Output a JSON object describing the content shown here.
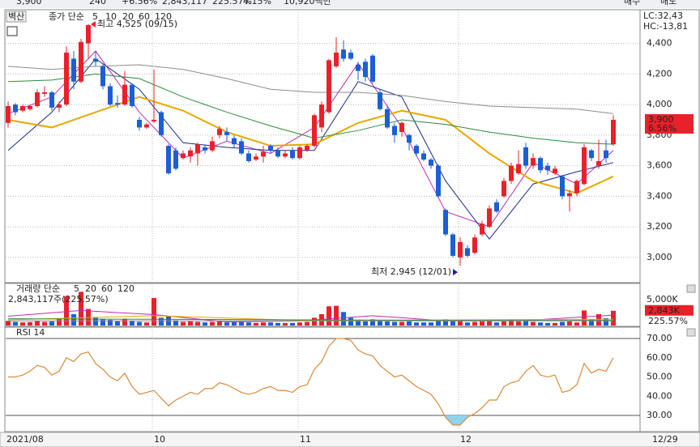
{
  "header": [
    "3,900",
    "240",
    "+6.56%",
    "2,843,117",
    "225.57%",
    "4.15%",
    "10,920백만",
    "매수",
    "매도"
  ],
  "chart_data": [
    {
      "type": "candlestick",
      "name": "벽산",
      "legend_label": "종가 단순",
      "ylim": [
        2840,
        4610
      ],
      "yticks": [
        {
          "value": 3000,
          "label": "3,000"
        },
        {
          "value": 3200,
          "label": "3,200"
        },
        {
          "value": 3400,
          "label": "3,400"
        },
        {
          "value": 3600,
          "label": "3,600"
        },
        {
          "value": 3800,
          "label": "3,800"
        },
        {
          "value": 4000,
          "label": "4,000"
        },
        {
          "value": 4200,
          "label": "4,200"
        },
        {
          "value": 4400,
          "label": "4,400"
        }
      ],
      "grid": true,
      "up_color": "#e8212a",
      "down_color": "#1b5fd6",
      "ohlc": [
        [
          3880,
          4020,
          3850,
          3990
        ],
        [
          4000,
          4010,
          3930,
          3950
        ],
        [
          3960,
          4000,
          3950,
          3990
        ],
        [
          3970,
          4000,
          3960,
          3990
        ],
        [
          3990,
          4100,
          3980,
          4080
        ],
        [
          4070,
          4120,
          4050,
          4080
        ],
        [
          4080,
          4090,
          3960,
          3980
        ],
        [
          3980,
          4020,
          3950,
          4000
        ],
        [
          4000,
          4380,
          3990,
          4340
        ],
        [
          4300,
          4350,
          4100,
          4150
        ],
        [
          4150,
          4430,
          4140,
          4410
        ],
        [
          4400,
          4525,
          4300,
          4520
        ],
        [
          4300,
          4350,
          4250,
          4280
        ],
        [
          4250,
          4270,
          4100,
          4120
        ],
        [
          4120,
          4140,
          3990,
          4000
        ],
        [
          4010,
          4060,
          3980,
          4000
        ],
        [
          4000,
          4220,
          3990,
          4130
        ],
        [
          4130,
          4140,
          3980,
          3990
        ],
        [
          3900,
          3920,
          3830,
          3850
        ],
        [
          3850,
          3880,
          3840,
          3870
        ],
        [
          3890,
          4230,
          3880,
          3900
        ],
        [
          3950,
          3960,
          3790,
          3800
        ],
        [
          3730,
          3740,
          3540,
          3550
        ],
        [
          3700,
          3720,
          3570,
          3580
        ],
        [
          3650,
          3700,
          3640,
          3680
        ],
        [
          3660,
          3720,
          3620,
          3700
        ],
        [
          3680,
          3750,
          3600,
          3740
        ],
        [
          3720,
          3740,
          3680,
          3700
        ],
        [
          3700,
          3790,
          3690,
          3760
        ],
        [
          3800,
          3860,
          3780,
          3840
        ],
        [
          3820,
          3850,
          3760,
          3800
        ],
        [
          3780,
          3800,
          3720,
          3740
        ],
        [
          3760,
          3780,
          3670,
          3680
        ],
        [
          3680,
          3700,
          3620,
          3630
        ],
        [
          3640,
          3680,
          3630,
          3660
        ],
        [
          3660,
          3730,
          3620,
          3690
        ],
        [
          3730,
          3740,
          3680,
          3700
        ],
        [
          3700,
          3720,
          3650,
          3660
        ],
        [
          3660,
          3700,
          3650,
          3680
        ],
        [
          3700,
          3720,
          3640,
          3650
        ],
        [
          3650,
          3730,
          3640,
          3720
        ],
        [
          3700,
          3740,
          3690,
          3730
        ],
        [
          3730,
          3940,
          3720,
          3930
        ],
        [
          3850,
          4020,
          3820,
          4000
        ],
        [
          3950,
          4300,
          3940,
          4290
        ],
        [
          4250,
          4440,
          4240,
          4340
        ],
        [
          4360,
          4420,
          4280,
          4300
        ],
        [
          4340,
          4360,
          4290,
          4300
        ],
        [
          4260,
          4280,
          4160,
          4220
        ],
        [
          4280,
          4300,
          4150,
          4180
        ],
        [
          4320,
          4330,
          4140,
          4150
        ],
        [
          4080,
          4100,
          3960,
          3970
        ],
        [
          3970,
          3990,
          3840,
          3850
        ],
        [
          3860,
          3880,
          3750,
          3800
        ],
        [
          3820,
          3890,
          3790,
          3880
        ],
        [
          3800,
          3810,
          3700,
          3750
        ],
        [
          3730,
          3740,
          3660,
          3680
        ],
        [
          3680,
          3700,
          3630,
          3640
        ],
        [
          3640,
          3650,
          3580,
          3600
        ],
        [
          3600,
          3610,
          3390,
          3400
        ],
        [
          3310,
          3320,
          3140,
          3150
        ],
        [
          3150,
          3160,
          3000,
          3010
        ],
        [
          3000,
          3130,
          2945,
          3100
        ],
        [
          3060,
          3080,
          3000,
          3010
        ],
        [
          3030,
          3150,
          3020,
          3130
        ],
        [
          3150,
          3240,
          3140,
          3220
        ],
        [
          3200,
          3340,
          3190,
          3320
        ],
        [
          3360,
          3380,
          3290,
          3300
        ],
        [
          3400,
          3520,
          3390,
          3500
        ],
        [
          3500,
          3620,
          3480,
          3600
        ],
        [
          3550,
          3700,
          3540,
          3610
        ],
        [
          3720,
          3750,
          3580,
          3600
        ],
        [
          3600,
          3680,
          3580,
          3650
        ],
        [
          3650,
          3660,
          3550,
          3570
        ],
        [
          3600,
          3620,
          3540,
          3570
        ],
        [
          3550,
          3600,
          3540,
          3580
        ],
        [
          3530,
          3540,
          3380,
          3400
        ],
        [
          3400,
          3440,
          3300,
          3420
        ],
        [
          3420,
          3510,
          3400,
          3500
        ],
        [
          3480,
          3740,
          3470,
          3720
        ],
        [
          3700,
          3710,
          3630,
          3650
        ],
        [
          3600,
          3770,
          3580,
          3630
        ],
        [
          3700,
          3770,
          3620,
          3650
        ],
        [
          3740,
          3930,
          3730,
          3900
        ]
      ],
      "series": [
        {
          "name": "5",
          "color": "#c02cb0",
          "x": [
            0,
            6,
            12,
            18,
            24,
            30,
            36,
            42,
            48,
            54,
            60,
            66,
            72,
            78,
            83
          ],
          "values": [
            3940,
            4050,
            4350,
            3950,
            3650,
            3760,
            3680,
            3850,
            4270,
            3850,
            3300,
            3200,
            3620,
            3480,
            3700
          ]
        },
        {
          "name": "10",
          "color": "#1a2a8a",
          "x": [
            0,
            6,
            12,
            18,
            24,
            30,
            36,
            42,
            48,
            54,
            60,
            66,
            72,
            78,
            83
          ],
          "values": [
            3700,
            3950,
            4300,
            4100,
            3750,
            3720,
            3700,
            3700,
            4150,
            4050,
            3500,
            3120,
            3480,
            3560,
            3620
          ]
        },
        {
          "name": "20",
          "color": "#e8a800",
          "x": [
            0,
            6,
            12,
            18,
            24,
            30,
            36,
            42,
            48,
            54,
            60,
            66,
            72,
            78,
            83
          ],
          "values": [
            3900,
            3850,
            3950,
            4050,
            3960,
            3820,
            3730,
            3740,
            3880,
            3960,
            3900,
            3680,
            3500,
            3420,
            3530
          ]
        },
        {
          "name": "60",
          "color": "#2e8b3a",
          "x": [
            0,
            6,
            12,
            18,
            24,
            30,
            36,
            42,
            48,
            54,
            60,
            66,
            72,
            78,
            83
          ],
          "values": [
            4150,
            4160,
            4200,
            4170,
            4050,
            3950,
            3860,
            3780,
            3830,
            3900,
            3870,
            3820,
            3780,
            3750,
            3740
          ]
        },
        {
          "name": "120",
          "color": "#8c8c8c",
          "x": [
            0,
            6,
            12,
            18,
            24,
            30,
            36,
            42,
            48,
            54,
            60,
            66,
            72,
            78,
            83
          ],
          "values": [
            4250,
            4230,
            4250,
            4260,
            4230,
            4170,
            4100,
            4080,
            4080,
            4060,
            4020,
            3990,
            3980,
            3970,
            3940
          ]
        }
      ],
      "annotations": [
        {
          "text": "최고 4,525 (09/15)",
          "x": 11,
          "value": 4525,
          "color": "#e8212a",
          "side": "right"
        },
        {
          "text": "최저 2,945 (12/01)",
          "x": 62,
          "value": 2945,
          "color": "#1b1bb0",
          "side": "left"
        }
      ],
      "corner_labels": [
        {
          "text": "LC:32,43",
          "color": "#e8212a"
        },
        {
          "text": "HC:-13,81",
          "color": "#1b5fd6"
        }
      ],
      "last": {
        "value": 3900,
        "label": "3,900",
        "change": "6.56%",
        "color": "#e8212a"
      }
    },
    {
      "type": "bar",
      "legend_label": "거래량 단순",
      "summary": "2,843,117주(225.57%)",
      "ylim": [
        0,
        7800
      ],
      "yticks": [
        {
          "value": 5000,
          "label": "5,000K"
        }
      ],
      "values": [
        900,
        700,
        600,
        650,
        900,
        700,
        800,
        1200,
        5600,
        2200,
        6500,
        3200,
        1500,
        1200,
        1100,
        800,
        1300,
        900,
        700,
        600,
        5300,
        1500,
        1800,
        1000,
        700,
        800,
        700,
        600,
        700,
        800,
        600,
        700,
        700,
        600,
        500,
        600,
        600,
        500,
        500,
        500,
        600,
        700,
        1500,
        2200,
        3700,
        3800,
        2600,
        1500,
        900,
        800,
        1200,
        900,
        800,
        700,
        700,
        800,
        600,
        600,
        600,
        900,
        1200,
        900,
        1100,
        600,
        700,
        800,
        900,
        600,
        800,
        1200,
        800,
        900,
        700,
        600,
        500,
        500,
        700,
        800,
        600,
        2900,
        1200,
        2200,
        1400,
        2843
      ],
      "series": [
        {
          "name": "5",
          "color": "#c02cb0",
          "x": [
            0,
            10,
            20,
            30,
            40,
            50,
            60,
            70,
            83
          ],
          "values": [
            1800,
            2900,
            2100,
            700,
            900,
            1900,
            900,
            900,
            2000
          ]
        },
        {
          "name": "20",
          "color": "#e8a800",
          "x": [
            0,
            20,
            40,
            60,
            83
          ],
          "values": [
            1100,
            1900,
            1000,
            1100,
            1200
          ]
        },
        {
          "name": "60",
          "color": "#2e8b3a",
          "x": [
            0,
            20,
            40,
            60,
            83
          ],
          "values": [
            1300,
            1200,
            1100,
            1000,
            1000
          ]
        },
        {
          "name": "120",
          "color": "#8c8c8c",
          "x": [
            0,
            40,
            83
          ],
          "values": [
            900,
            900,
            900
          ]
        }
      ],
      "last": {
        "value": 2843,
        "label": "2,843K",
        "change": "225.57%",
        "color": "#e8212a"
      }
    },
    {
      "type": "line",
      "legend_label": "RSI 14",
      "color": "#d98a3a",
      "fill_color": "#8fd3f0",
      "ylim": [
        22,
        75.5
      ],
      "yticks": [
        {
          "value": 30,
          "label": "30.00"
        },
        {
          "value": 40,
          "label": "40.00"
        },
        {
          "value": 50,
          "label": "50.00"
        },
        {
          "value": 60,
          "label": "60.00"
        },
        {
          "value": 70,
          "label": "70.00"
        }
      ],
      "levels": [
        30,
        70
      ],
      "values": [
        50,
        50,
        51,
        53,
        56,
        55,
        51,
        53,
        60,
        58,
        62,
        63,
        57,
        54,
        50,
        48,
        52,
        45,
        41,
        42,
        43,
        39,
        35,
        38,
        40,
        42,
        41,
        44,
        44,
        47,
        46,
        44,
        42,
        41,
        42,
        44,
        45,
        43,
        43,
        42,
        45,
        46,
        54,
        58,
        66,
        70,
        70,
        69,
        64,
        62,
        61,
        56,
        53,
        50,
        51,
        48,
        45,
        43,
        41,
        36,
        29,
        25,
        25,
        29,
        31,
        34,
        38,
        38,
        45,
        47,
        48,
        53,
        56,
        51,
        50,
        51,
        42,
        43,
        46,
        57,
        52,
        54,
        53,
        60
      ],
      "xticks": [
        {
          "value": 0,
          "label": "2021/08"
        },
        {
          "value": 20,
          "label": "10"
        },
        {
          "value": 40,
          "label": "11"
        },
        {
          "value": 62,
          "label": "12"
        }
      ],
      "end_label": "12/29"
    }
  ]
}
